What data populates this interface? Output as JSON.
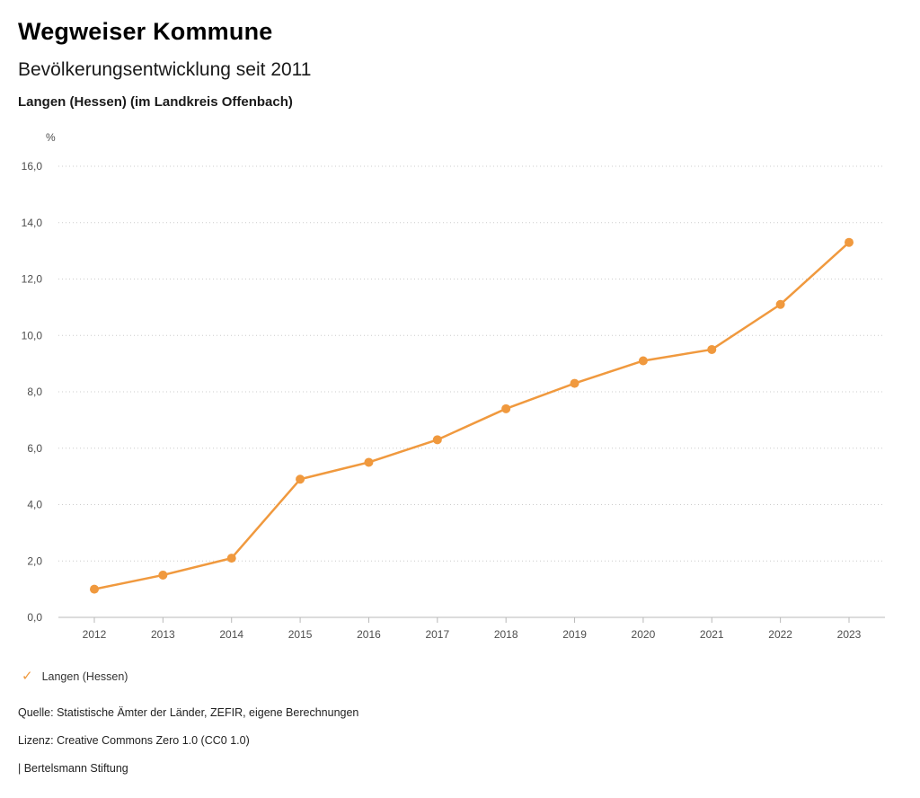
{
  "header": {
    "brand": "Wegweiser Kommune",
    "title": "Bevölkerungsentwicklung seit 2011",
    "subtitle": "Langen (Hessen) (im Landkreis Offenbach)"
  },
  "chart_data": {
    "type": "line",
    "title": "Bevölkerungsentwicklung seit 2011",
    "subtitle": "Langen (Hessen) (im Landkreis Offenbach)",
    "unit_label": "%",
    "x": [
      2012,
      2013,
      2014,
      2015,
      2016,
      2017,
      2018,
      2019,
      2020,
      2021,
      2022,
      2023
    ],
    "series": [
      {
        "name": "Langen (Hessen)",
        "color": "#F0993E",
        "values": [
          1.0,
          1.5,
          2.1,
          4.9,
          5.5,
          6.3,
          7.4,
          8.3,
          9.1,
          9.5,
          11.1,
          13.3
        ]
      }
    ],
    "ylim": [
      0,
      16
    ],
    "ytick_step": 2,
    "ytick_labels": [
      "0,0",
      "2,0",
      "4,0",
      "6,0",
      "8,0",
      "10,0",
      "12,0",
      "14,0",
      "16,0"
    ],
    "grid": "dotted-horizontal",
    "legend_position": "bottom-left",
    "axis_color": "#b8b8b8",
    "grid_color": "#cccccc"
  },
  "legend": {
    "check_icon": "✓",
    "label": "Langen (Hessen)"
  },
  "footer": {
    "source": "Quelle: Statistische Ämter der Länder, ZEFIR, eigene Berechnungen",
    "license": "Lizenz: Creative Commons Zero 1.0 (CC0 1.0)",
    "attribution": "| Bertelsmann Stiftung"
  }
}
